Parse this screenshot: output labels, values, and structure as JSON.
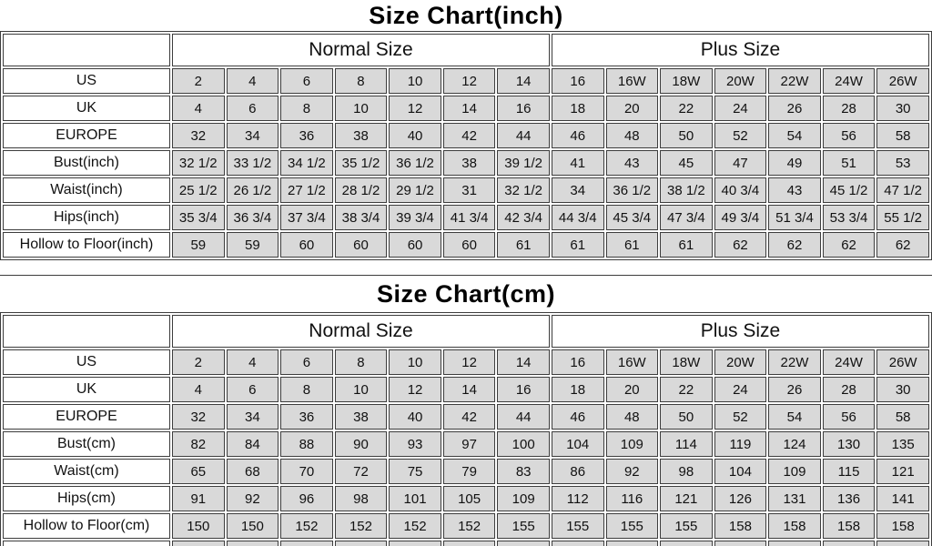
{
  "colors": {
    "cell_background": "#d9d9d9",
    "border": "#3d3d3d",
    "text": "#111111",
    "background": "#ffffff"
  },
  "tables": [
    {
      "title": "Size Chart(inch)",
      "group_headers": [
        {
          "label": "Normal Size",
          "span": 7
        },
        {
          "label": "Plus Size",
          "span": 7
        }
      ],
      "rows": [
        {
          "label": "US",
          "values": [
            "2",
            "4",
            "6",
            "8",
            "10",
            "12",
            "14",
            "16",
            "16W",
            "18W",
            "20W",
            "22W",
            "24W",
            "26W"
          ]
        },
        {
          "label": "UK",
          "values": [
            "4",
            "6",
            "8",
            "10",
            "12",
            "14",
            "16",
            "18",
            "20",
            "22",
            "24",
            "26",
            "28",
            "30"
          ]
        },
        {
          "label": "EUROPE",
          "values": [
            "32",
            "34",
            "36",
            "38",
            "40",
            "42",
            "44",
            "46",
            "48",
            "50",
            "52",
            "54",
            "56",
            "58"
          ]
        },
        {
          "label": "Bust(inch)",
          "values": [
            "32 1/2",
            "33 1/2",
            "34 1/2",
            "35 1/2",
            "36 1/2",
            "38",
            "39 1/2",
            "41",
            "43",
            "45",
            "47",
            "49",
            "51",
            "53"
          ]
        },
        {
          "label": "Waist(inch)",
          "values": [
            "25 1/2",
            "26 1/2",
            "27 1/2",
            "28 1/2",
            "29 1/2",
            "31",
            "32 1/2",
            "34",
            "36 1/2",
            "38 1/2",
            "40 3/4",
            "43",
            "45 1/2",
            "47 1/2"
          ]
        },
        {
          "label": "Hips(inch)",
          "values": [
            "35 3/4",
            "36 3/4",
            "37 3/4",
            "38 3/4",
            "39 3/4",
            "41 3/4",
            "42 3/4",
            "44 3/4",
            "45 3/4",
            "47 3/4",
            "49 3/4",
            "51 3/4",
            "53 3/4",
            "55 1/2"
          ]
        },
        {
          "label": "Hollow to Floor(inch)",
          "values": [
            "59",
            "59",
            "60",
            "60",
            "60",
            "60",
            "61",
            "61",
            "61",
            "61",
            "62",
            "62",
            "62",
            "62"
          ]
        }
      ],
      "clipped_partial_row": false
    },
    {
      "title": "Size Chart(cm)",
      "group_headers": [
        {
          "label": "Normal Size",
          "span": 7
        },
        {
          "label": "Plus Size",
          "span": 7
        }
      ],
      "rows": [
        {
          "label": "US",
          "values": [
            "2",
            "4",
            "6",
            "8",
            "10",
            "12",
            "14",
            "16",
            "16W",
            "18W",
            "20W",
            "22W",
            "24W",
            "26W"
          ]
        },
        {
          "label": "UK",
          "values": [
            "4",
            "6",
            "8",
            "10",
            "12",
            "14",
            "16",
            "18",
            "20",
            "22",
            "24",
            "26",
            "28",
            "30"
          ]
        },
        {
          "label": "EUROPE",
          "values": [
            "32",
            "34",
            "36",
            "38",
            "40",
            "42",
            "44",
            "46",
            "48",
            "50",
            "52",
            "54",
            "56",
            "58"
          ]
        },
        {
          "label": "Bust(cm)",
          "values": [
            "82",
            "84",
            "88",
            "90",
            "93",
            "97",
            "100",
            "104",
            "109",
            "114",
            "119",
            "124",
            "130",
            "135"
          ]
        },
        {
          "label": "Waist(cm)",
          "values": [
            "65",
            "68",
            "70",
            "72",
            "75",
            "79",
            "83",
            "86",
            "92",
            "98",
            "104",
            "109",
            "115",
            "121"
          ]
        },
        {
          "label": "Hips(cm)",
          "values": [
            "91",
            "92",
            "96",
            "98",
            "101",
            "105",
            "109",
            "112",
            "116",
            "121",
            "126",
            "131",
            "136",
            "141"
          ]
        },
        {
          "label": "Hollow to Floor(cm)",
          "values": [
            "150",
            "150",
            "152",
            "152",
            "152",
            "152",
            "155",
            "155",
            "155",
            "155",
            "158",
            "158",
            "158",
            "158"
          ]
        }
      ],
      "clipped_partial_row": true
    }
  ]
}
